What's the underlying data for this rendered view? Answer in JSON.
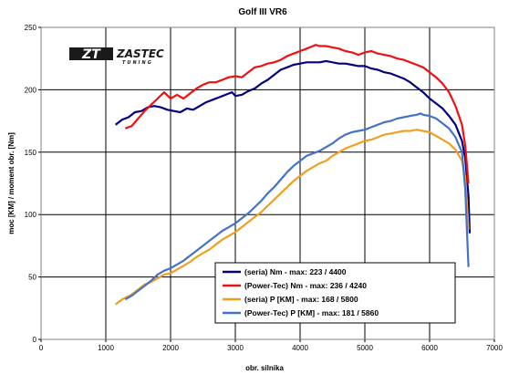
{
  "logo": {
    "mark": "ZT",
    "name": "ZASTEC",
    "sub": "TUNING"
  },
  "chart_data": {
    "type": "line",
    "title": "Golf III VR6",
    "xlabel": "obr. silnika",
    "ylabel": "moc [KM] / moment obr. [Nm]",
    "xlim": [
      0,
      7000
    ],
    "ylim": [
      0,
      250
    ],
    "x_ticks": [
      0,
      1000,
      2000,
      3000,
      4000,
      5000,
      6000,
      7000
    ],
    "y_ticks": [
      0,
      50,
      100,
      150,
      200,
      250
    ],
    "grid": true,
    "legend_position": "bottom-right",
    "series": [
      {
        "name": "(seria) Nm - max: 223 / 4400",
        "color": "#000080",
        "points": [
          [
            1150,
            172
          ],
          [
            1250,
            176
          ],
          [
            1350,
            178
          ],
          [
            1450,
            182
          ],
          [
            1550,
            183
          ],
          [
            1650,
            186
          ],
          [
            1750,
            187
          ],
          [
            1850,
            186
          ],
          [
            1950,
            184
          ],
          [
            2050,
            183
          ],
          [
            2150,
            182
          ],
          [
            2250,
            185
          ],
          [
            2350,
            184
          ],
          [
            2450,
            187
          ],
          [
            2550,
            190
          ],
          [
            2650,
            192
          ],
          [
            2750,
            194
          ],
          [
            2850,
            196
          ],
          [
            2950,
            198
          ],
          [
            3000,
            195
          ],
          [
            3100,
            196
          ],
          [
            3200,
            199
          ],
          [
            3300,
            201
          ],
          [
            3400,
            205
          ],
          [
            3500,
            208
          ],
          [
            3600,
            212
          ],
          [
            3700,
            216
          ],
          [
            3800,
            218
          ],
          [
            3900,
            220
          ],
          [
            4000,
            221
          ],
          [
            4100,
            222
          ],
          [
            4200,
            222
          ],
          [
            4300,
            222
          ],
          [
            4400,
            223
          ],
          [
            4500,
            222
          ],
          [
            4600,
            221
          ],
          [
            4700,
            221
          ],
          [
            4800,
            220
          ],
          [
            4900,
            219
          ],
          [
            5000,
            219
          ],
          [
            5100,
            217
          ],
          [
            5200,
            216
          ],
          [
            5300,
            214
          ],
          [
            5400,
            213
          ],
          [
            5500,
            211
          ],
          [
            5600,
            209
          ],
          [
            5700,
            206
          ],
          [
            5800,
            202
          ],
          [
            5900,
            198
          ],
          [
            6000,
            193
          ],
          [
            6100,
            189
          ],
          [
            6200,
            185
          ],
          [
            6300,
            179
          ],
          [
            6400,
            172
          ],
          [
            6500,
            159
          ],
          [
            6550,
            145
          ],
          [
            6600,
            115
          ],
          [
            6620,
            85
          ]
        ]
      },
      {
        "name": "(Power-Tec) Nm - max: 236 / 4240",
        "color": "#ee1111",
        "points": [
          [
            1300,
            169
          ],
          [
            1400,
            171
          ],
          [
            1500,
            177
          ],
          [
            1600,
            183
          ],
          [
            1700,
            188
          ],
          [
            1800,
            193
          ],
          [
            1900,
            198
          ],
          [
            2000,
            193
          ],
          [
            2100,
            196
          ],
          [
            2200,
            193
          ],
          [
            2300,
            197
          ],
          [
            2400,
            201
          ],
          [
            2500,
            204
          ],
          [
            2600,
            206
          ],
          [
            2700,
            206
          ],
          [
            2800,
            208
          ],
          [
            2900,
            210
          ],
          [
            3000,
            211
          ],
          [
            3100,
            210
          ],
          [
            3200,
            214
          ],
          [
            3300,
            218
          ],
          [
            3400,
            219
          ],
          [
            3500,
            221
          ],
          [
            3600,
            222
          ],
          [
            3700,
            224
          ],
          [
            3800,
            227
          ],
          [
            3900,
            229
          ],
          [
            4000,
            231
          ],
          [
            4100,
            233
          ],
          [
            4200,
            235
          ],
          [
            4240,
            236
          ],
          [
            4300,
            235
          ],
          [
            4400,
            235
          ],
          [
            4500,
            234
          ],
          [
            4600,
            233
          ],
          [
            4700,
            231
          ],
          [
            4800,
            230
          ],
          [
            4900,
            228
          ],
          [
            5000,
            230
          ],
          [
            5100,
            231
          ],
          [
            5200,
            229
          ],
          [
            5300,
            228
          ],
          [
            5400,
            227
          ],
          [
            5500,
            225
          ],
          [
            5600,
            224
          ],
          [
            5700,
            222
          ],
          [
            5800,
            220
          ],
          [
            5900,
            218
          ],
          [
            6000,
            214
          ],
          [
            6100,
            210
          ],
          [
            6200,
            205
          ],
          [
            6300,
            198
          ],
          [
            6400,
            187
          ],
          [
            6500,
            172
          ],
          [
            6550,
            155
          ],
          [
            6600,
            125
          ]
        ]
      },
      {
        "name": "(seria) P [KM] - max: 168 / 5800",
        "color": "#f0a020",
        "points": [
          [
            1150,
            28
          ],
          [
            1250,
            32
          ],
          [
            1400,
            36
          ],
          [
            1500,
            40
          ],
          [
            1600,
            44
          ],
          [
            1700,
            46
          ],
          [
            1800,
            49
          ],
          [
            1900,
            52
          ],
          [
            2000,
            53
          ],
          [
            2100,
            56
          ],
          [
            2200,
            59
          ],
          [
            2300,
            62
          ],
          [
            2400,
            66
          ],
          [
            2500,
            69
          ],
          [
            2600,
            72
          ],
          [
            2700,
            76
          ],
          [
            2800,
            80
          ],
          [
            2900,
            83
          ],
          [
            3000,
            86
          ],
          [
            3100,
            90
          ],
          [
            3200,
            94
          ],
          [
            3300,
            98
          ],
          [
            3400,
            102
          ],
          [
            3500,
            107
          ],
          [
            3600,
            112
          ],
          [
            3700,
            117
          ],
          [
            3800,
            122
          ],
          [
            3900,
            127
          ],
          [
            4000,
            131
          ],
          [
            4100,
            135
          ],
          [
            4200,
            138
          ],
          [
            4300,
            141
          ],
          [
            4400,
            143
          ],
          [
            4500,
            147
          ],
          [
            4600,
            150
          ],
          [
            4700,
            153
          ],
          [
            4800,
            155
          ],
          [
            4900,
            157
          ],
          [
            5000,
            159
          ],
          [
            5100,
            160
          ],
          [
            5200,
            162
          ],
          [
            5300,
            164
          ],
          [
            5400,
            165
          ],
          [
            5500,
            166
          ],
          [
            5600,
            167
          ],
          [
            5700,
            167
          ],
          [
            5800,
            168
          ],
          [
            5900,
            167
          ],
          [
            6000,
            166
          ],
          [
            6100,
            163
          ],
          [
            6200,
            160
          ],
          [
            6300,
            157
          ],
          [
            6400,
            152
          ],
          [
            6500,
            143
          ],
          [
            6550,
            130
          ],
          [
            6600,
            88
          ]
        ]
      },
      {
        "name": "(Power-Tec) P [KM] - max: 181 / 5860",
        "color": "#4472c4",
        "points": [
          [
            1300,
            32
          ],
          [
            1400,
            35
          ],
          [
            1500,
            39
          ],
          [
            1600,
            43
          ],
          [
            1700,
            47
          ],
          [
            1800,
            52
          ],
          [
            1900,
            55
          ],
          [
            2000,
            57
          ],
          [
            2100,
            60
          ],
          [
            2200,
            63
          ],
          [
            2300,
            67
          ],
          [
            2400,
            71
          ],
          [
            2500,
            75
          ],
          [
            2600,
            79
          ],
          [
            2700,
            83
          ],
          [
            2800,
            87
          ],
          [
            2900,
            90
          ],
          [
            3000,
            93
          ],
          [
            3100,
            97
          ],
          [
            3200,
            101
          ],
          [
            3300,
            106
          ],
          [
            3400,
            111
          ],
          [
            3500,
            117
          ],
          [
            3600,
            122
          ],
          [
            3700,
            128
          ],
          [
            3800,
            134
          ],
          [
            3900,
            139
          ],
          [
            4000,
            143
          ],
          [
            4100,
            147
          ],
          [
            4200,
            149
          ],
          [
            4300,
            151
          ],
          [
            4400,
            154
          ],
          [
            4500,
            157
          ],
          [
            4600,
            161
          ],
          [
            4700,
            164
          ],
          [
            4800,
            166
          ],
          [
            4900,
            167
          ],
          [
            5000,
            168
          ],
          [
            5100,
            170
          ],
          [
            5200,
            172
          ],
          [
            5300,
            174
          ],
          [
            5400,
            175
          ],
          [
            5500,
            177
          ],
          [
            5600,
            178
          ],
          [
            5700,
            179
          ],
          [
            5800,
            180
          ],
          [
            5860,
            181
          ],
          [
            5900,
            180
          ],
          [
            6000,
            179
          ],
          [
            6100,
            177
          ],
          [
            6200,
            173
          ],
          [
            6300,
            169
          ],
          [
            6400,
            162
          ],
          [
            6500,
            150
          ],
          [
            6550,
            120
          ],
          [
            6600,
            58
          ]
        ]
      }
    ]
  }
}
